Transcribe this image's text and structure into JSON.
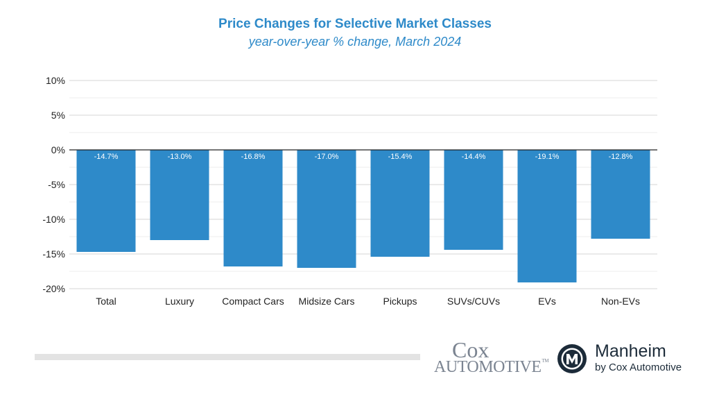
{
  "chart_data": {
    "type": "bar",
    "title": "Price Changes for Selective Market Classes",
    "subtitle": "year-over-year % change, March 2024",
    "categories": [
      "Total",
      "Luxury",
      "Compact Cars",
      "Midsize Cars",
      "Pickups",
      "SUVs/CUVs",
      "EVs",
      "Non-EVs"
    ],
    "values": [
      -14.7,
      -13.0,
      -16.8,
      -17.0,
      -15.4,
      -14.4,
      -19.1,
      -12.8
    ],
    "data_labels": [
      "-14.7%",
      "-13.0%",
      "-16.8%",
      "-17.0%",
      "-15.4%",
      "-14.4%",
      "-19.1%",
      "-12.8%"
    ],
    "ylim": [
      -20,
      10
    ],
    "yticks": [
      10,
      5,
      0,
      -5,
      -10,
      -15,
      -20
    ],
    "ytick_labels": [
      "10%",
      "5%",
      "0%",
      "-5%",
      "-10%",
      "-15%",
      "-20%"
    ],
    "grid": true,
    "bar_color": "#2e8ac9",
    "xlabel": "",
    "ylabel": ""
  },
  "logos": {
    "cox_word": "Cox",
    "cox_sub": "Automotive",
    "cox_tm": "TM",
    "manheim_name": "Manheim",
    "manheim_sub": "by Cox Automotive",
    "manheim_color": "#1c2b39",
    "cox_color": "#7b8491"
  }
}
